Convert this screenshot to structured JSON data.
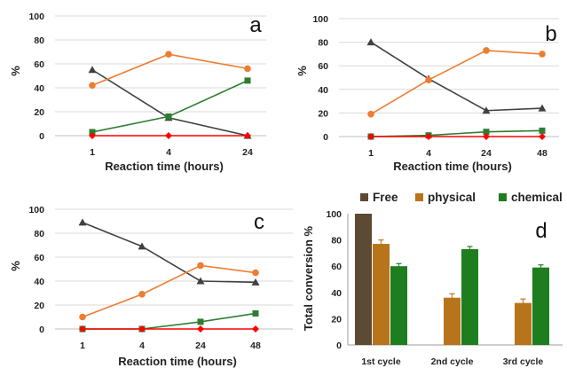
{
  "chart_data": [
    {
      "type": "line",
      "panel_label": "a",
      "categories": [
        "1",
        "4",
        "24"
      ],
      "xlabel": "Reaction time (hours)",
      "ylabel": "%",
      "ylim": [
        0,
        100
      ],
      "yticks": [
        0,
        20,
        40,
        60,
        80,
        100
      ],
      "grid": true,
      "series": [
        {
          "values": [
            55,
            15,
            0
          ],
          "color": "#404040",
          "marker": "triangle"
        },
        {
          "values": [
            42,
            68,
            56
          ],
          "color": "#ED7D31",
          "marker": "circle"
        },
        {
          "values": [
            3,
            16,
            46
          ],
          "color": "#2E7D32",
          "marker": "square"
        },
        {
          "values": [
            0,
            0,
            0
          ],
          "color": "#FF0000",
          "marker": "diamond"
        }
      ]
    },
    {
      "type": "line",
      "panel_label": "b",
      "categories": [
        "1",
        "4",
        "24",
        "48"
      ],
      "xlabel": "Reaction time (hours)",
      "ylabel": "%",
      "ylim": [
        0,
        100
      ],
      "yticks": [
        0,
        20,
        40,
        60,
        80,
        100
      ],
      "grid": true,
      "series": [
        {
          "values": [
            80,
            49,
            22,
            24
          ],
          "color": "#404040",
          "marker": "triangle"
        },
        {
          "values": [
            19,
            48,
            73,
            70
          ],
          "color": "#ED7D31",
          "marker": "circle"
        },
        {
          "values": [
            0,
            1,
            4,
            5
          ],
          "color": "#2E7D32",
          "marker": "square"
        },
        {
          "values": [
            0,
            0,
            0,
            0
          ],
          "color": "#FF0000",
          "marker": "diamond"
        }
      ]
    },
    {
      "type": "line",
      "panel_label": "c",
      "categories": [
        "1",
        "4",
        "24",
        "48"
      ],
      "xlabel": "Reaction time (hours)",
      "ylabel": "%",
      "ylim": [
        0,
        100
      ],
      "yticks": [
        0,
        20,
        40,
        60,
        80,
        100
      ],
      "grid": true,
      "series": [
        {
          "values": [
            89,
            69,
            40,
            39
          ],
          "color": "#404040",
          "marker": "triangle"
        },
        {
          "values": [
            10,
            29,
            53,
            47
          ],
          "color": "#ED7D31",
          "marker": "circle"
        },
        {
          "values": [
            0,
            0,
            6,
            13
          ],
          "color": "#2E7D32",
          "marker": "square"
        },
        {
          "values": [
            0,
            0,
            0,
            0
          ],
          "color": "#FF0000",
          "marker": "diamond"
        }
      ]
    },
    {
      "type": "bar",
      "panel_label": "d",
      "categories": [
        "1st cycle",
        "2nd cycle",
        "3rd cycle"
      ],
      "ylabel": "Total conversion %",
      "ylim": [
        0,
        100
      ],
      "yticks": [
        0,
        20,
        40,
        60,
        80,
        100
      ],
      "grid": false,
      "legend": "top",
      "series": [
        {
          "name": "Free",
          "values": [
            100,
            null,
            null
          ],
          "errors": [
            0,
            0,
            0
          ],
          "color": "#5C4A33"
        },
        {
          "name": "physical",
          "values": [
            77,
            36,
            32
          ],
          "errors": [
            3,
            3,
            3
          ],
          "color": "#B8741A"
        },
        {
          "name": "chemical",
          "values": [
            60,
            73,
            59
          ],
          "errors": [
            2,
            2,
            2
          ],
          "color": "#1E7D1E"
        }
      ]
    }
  ]
}
